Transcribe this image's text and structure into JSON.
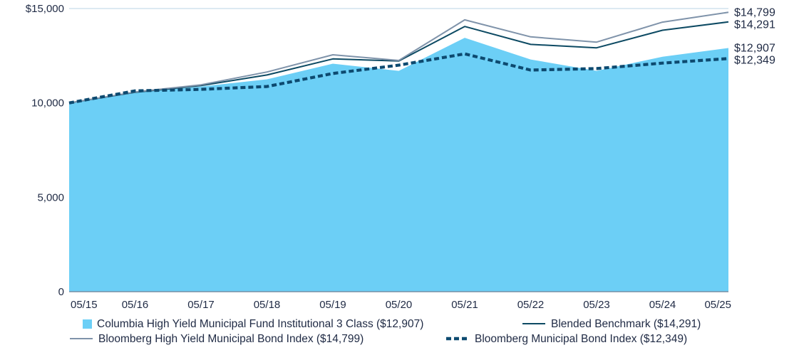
{
  "chart_data": {
    "type": "area",
    "x": [
      "05/15",
      "05/16",
      "05/17",
      "05/18",
      "05/19",
      "05/20",
      "05/21",
      "05/22",
      "05/23",
      "05/24",
      "05/25"
    ],
    "ylim": [
      0,
      15000
    ],
    "yticks": [
      {
        "value": 15000,
        "label": "$15,000"
      },
      {
        "value": 10000,
        "label": "10,000"
      },
      {
        "value": 5000,
        "label": "5,000"
      },
      {
        "value": 0,
        "label": "0"
      }
    ],
    "grid": "horizontal",
    "legend_position": "bottom",
    "series": [
      {
        "name": "Columbia High Yield Municipal Fund Institutional 3 Class ($12,907)",
        "style": "area",
        "color": "#6ccff6",
        "end_label": "$12,907",
        "values": [
          10000,
          10550,
          10870,
          11250,
          12080,
          11700,
          13450,
          12300,
          11700,
          12450,
          12907
        ]
      },
      {
        "name": "Blended Benchmark ($14,291)",
        "style": "solid",
        "color": "#0d4a63",
        "end_label": "$14,291",
        "values": [
          10000,
          10560,
          10920,
          11480,
          12330,
          12220,
          14050,
          13100,
          12920,
          13850,
          14291
        ]
      },
      {
        "name": "Bloomberg High Yield Municipal Bond Index ($14,799)",
        "style": "solid",
        "color": "#7f93aa",
        "end_label": "$14,799",
        "values": [
          10000,
          10580,
          10960,
          11640,
          12550,
          12250,
          14400,
          13500,
          13220,
          14280,
          14799
        ]
      },
      {
        "name": "Bloomberg Municipal Bond Index ($12,349)",
        "style": "dashed",
        "color": "#0d4a70",
        "end_label": "$12,349",
        "values": [
          10000,
          10640,
          10720,
          10870,
          11560,
          12000,
          12600,
          11740,
          11820,
          12110,
          12349
        ]
      }
    ]
  }
}
